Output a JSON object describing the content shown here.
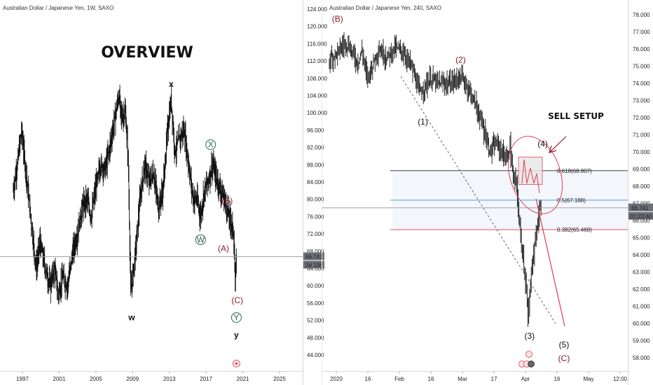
{
  "colors": {
    "candle": "#111111",
    "maroon": "#8b1a2b",
    "green": "#2e6b4f",
    "red": "#e33b4e",
    "blue": "#3b8fe0",
    "price_line": "#9aa0a6",
    "price_tag": "#6b6f76"
  },
  "chart_data": [
    {
      "type": "candlestick",
      "symbol": "Australian Dollar / Japanese Yen, 1W, SAXO",
      "title": "OVERVIEW",
      "ylim": [
        40,
        126
      ],
      "y_ticks": [
        "124.000",
        "120.000",
        "116.000",
        "112.000",
        "108.000",
        "104.000",
        "100.000",
        "96.000",
        "92.000",
        "88.000",
        "84.000",
        "80.000",
        "76.000",
        "72.000",
        "68.000",
        "64.000",
        "60.000",
        "56.000",
        "52.000",
        "48.000",
        "44.000"
      ],
      "x_ticks": [
        "1997",
        "2001",
        "2005",
        "2009",
        "2013",
        "2017",
        "2021",
        "2025"
      ],
      "xlim": [
        1995.6,
        2027.6
      ],
      "close_series": [
        [
          1996.0,
          82
        ],
        [
          1996.5,
          89
        ],
        [
          1996.9,
          96
        ],
        [
          1997.5,
          84
        ],
        [
          1998.0,
          74
        ],
        [
          1998.5,
          64
        ],
        [
          1998.9,
          70
        ],
        [
          1999.5,
          64
        ],
        [
          2000.0,
          60
        ],
        [
          2000.5,
          64
        ],
        [
          2000.9,
          58
        ],
        [
          2001.4,
          62
        ],
        [
          2001.9,
          60
        ],
        [
          2002.5,
          68
        ],
        [
          2003.0,
          72
        ],
        [
          2003.5,
          78
        ],
        [
          2004.0,
          80
        ],
        [
          2004.5,
          76
        ],
        [
          2005.0,
          83
        ],
        [
          2005.5,
          88
        ],
        [
          2006.0,
          87
        ],
        [
          2006.5,
          92
        ],
        [
          2007.0,
          98
        ],
        [
          2007.5,
          104
        ],
        [
          2007.8,
          99
        ],
        [
          2008.2,
          100
        ],
        [
          2008.5,
          90
        ],
        [
          2008.8,
          58
        ],
        [
          2009.0,
          62
        ],
        [
          2009.4,
          70
        ],
        [
          2009.8,
          80
        ],
        [
          2010.3,
          88
        ],
        [
          2010.8,
          84
        ],
        [
          2011.3,
          86
        ],
        [
          2011.8,
          78
        ],
        [
          2012.3,
          82
        ],
        [
          2012.8,
          96
        ],
        [
          2013.2,
          103
        ],
        [
          2013.6,
          91
        ],
        [
          2014.1,
          94
        ],
        [
          2014.6,
          96
        ],
        [
          2015.1,
          88
        ],
        [
          2015.6,
          80
        ],
        [
          2016.0,
          80
        ],
        [
          2016.4,
          76
        ],
        [
          2016.8,
          82
        ],
        [
          2017.2,
          84
        ],
        [
          2017.7,
          88
        ],
        [
          2018.1,
          85
        ],
        [
          2018.6,
          82
        ],
        [
          2019.0,
          80
        ],
        [
          2019.5,
          76
        ],
        [
          2019.8,
          74
        ],
        [
          2020.0,
          72
        ],
        [
          2020.15,
          60
        ],
        [
          2020.3,
          67
        ]
      ],
      "last_price": "66.741",
      "time_tag": "2d 10h",
      "annotations": [
        {
          "text": "x",
          "x": 2013.2,
          "y": 106,
          "color": "black",
          "style": "bold"
        },
        {
          "text": "w",
          "x": 2008.9,
          "y": 52,
          "color": "black",
          "style": "bold"
        },
        {
          "text": "y",
          "x": 2020.3,
          "y": 48,
          "color": "black",
          "style": "bold"
        },
        {
          "text": "X",
          "x": 2017.5,
          "y": 92,
          "color": "green",
          "style": "circled"
        },
        {
          "text": "W",
          "x": 2016.4,
          "y": 70,
          "color": "green",
          "style": "circled"
        },
        {
          "text": "Y",
          "x": 2020.3,
          "y": 52,
          "color": "green",
          "style": "circled"
        },
        {
          "text": "(B)",
          "x": 2019.3,
          "y": 79,
          "color": "maroon",
          "style": "plain"
        },
        {
          "text": "(A)",
          "x": 2018.9,
          "y": 68,
          "color": "maroon",
          "style": "plain"
        },
        {
          "text": "(C)",
          "x": 2020.4,
          "y": 56,
          "color": "maroon",
          "style": "plain"
        }
      ]
    },
    {
      "type": "candlestick",
      "symbol": "Australian Dollar / Japanese Yen, 240, SAXO",
      "title": "",
      "ylim": [
        57.3,
        78.5
      ],
      "y_ticks": [
        "78.000",
        "77.000",
        "76.000",
        "75.000",
        "74.000",
        "73.000",
        "72.000",
        "71.000",
        "70.000",
        "69.000",
        "68.000",
        "67.000",
        "66.000",
        "65.000",
        "64.000",
        "63.000",
        "62.000",
        "61.000",
        "60.000",
        "59.000",
        "58.000"
      ],
      "x_ticks": [
        "2020",
        "16",
        "Feb",
        "16",
        "Mar",
        "17",
        "Apr",
        "16",
        "May",
        "12:00"
      ],
      "xlim": [
        -5,
        145
      ],
      "close_series": [
        [
          0,
          75.4
        ],
        [
          5,
          75.8
        ],
        [
          10,
          76.4
        ],
        [
          13,
          76.0
        ],
        [
          17,
          75.2
        ],
        [
          20,
          75.9
        ],
        [
          23,
          74.3
        ],
        [
          26,
          75.0
        ],
        [
          30,
          76.0
        ],
        [
          35,
          75.5
        ],
        [
          40,
          76.1
        ],
        [
          45,
          75.8
        ],
        [
          50,
          75.0
        ],
        [
          55,
          73.4
        ],
        [
          58,
          73.8
        ],
        [
          62,
          74.3
        ],
        [
          66,
          74.0
        ],
        [
          70,
          74.0
        ],
        [
          74,
          74.0
        ],
        [
          80,
          74.4
        ],
        [
          86,
          73.5
        ],
        [
          90,
          72.5
        ],
        [
          95,
          71.0
        ],
        [
          98,
          70.0
        ],
        [
          102,
          70.5
        ],
        [
          108,
          69.5
        ],
        [
          110,
          70.4
        ],
        [
          112,
          68.4
        ],
        [
          114,
          68.2
        ],
        [
          116,
          65.5
        ],
        [
          118,
          64.0
        ],
        [
          120,
          62.0
        ],
        [
          121,
          60.0
        ],
        [
          123,
          63.0
        ],
        [
          125,
          64.5
        ],
        [
          127,
          66.0
        ],
        [
          129,
          67.1
        ]
      ],
      "last_price": "66.741",
      "time_tag": "01:23:40",
      "fib_levels": [
        {
          "label": "0.618(68.907)",
          "value": 68.907,
          "color": "black"
        },
        {
          "label": "0.5(67.188)",
          "value": 67.188,
          "color": "blue"
        },
        {
          "label": "0.382(65.468)",
          "value": 65.468,
          "color": "red"
        }
      ],
      "annotations": [
        {
          "text": "(B)",
          "x": 5,
          "y": 77.6,
          "color": "maroon"
        },
        {
          "text": "(2)",
          "x": 80,
          "y": 75.2,
          "color": "maroon"
        },
        {
          "text": "(1)",
          "x": 57,
          "y": 71.6,
          "color": "black"
        },
        {
          "text": "(4)",
          "x": 130,
          "y": 70.3,
          "color": "black"
        },
        {
          "text": "(3)",
          "x": 122,
          "y": 59.1,
          "color": "black"
        },
        {
          "text": "(5)",
          "x": 143,
          "y": 58.6,
          "color": "black"
        },
        {
          "text": "(C)",
          "x": 143,
          "y": 57.8,
          "color": "maroon"
        }
      ],
      "callout": "SELL SETUP"
    }
  ]
}
